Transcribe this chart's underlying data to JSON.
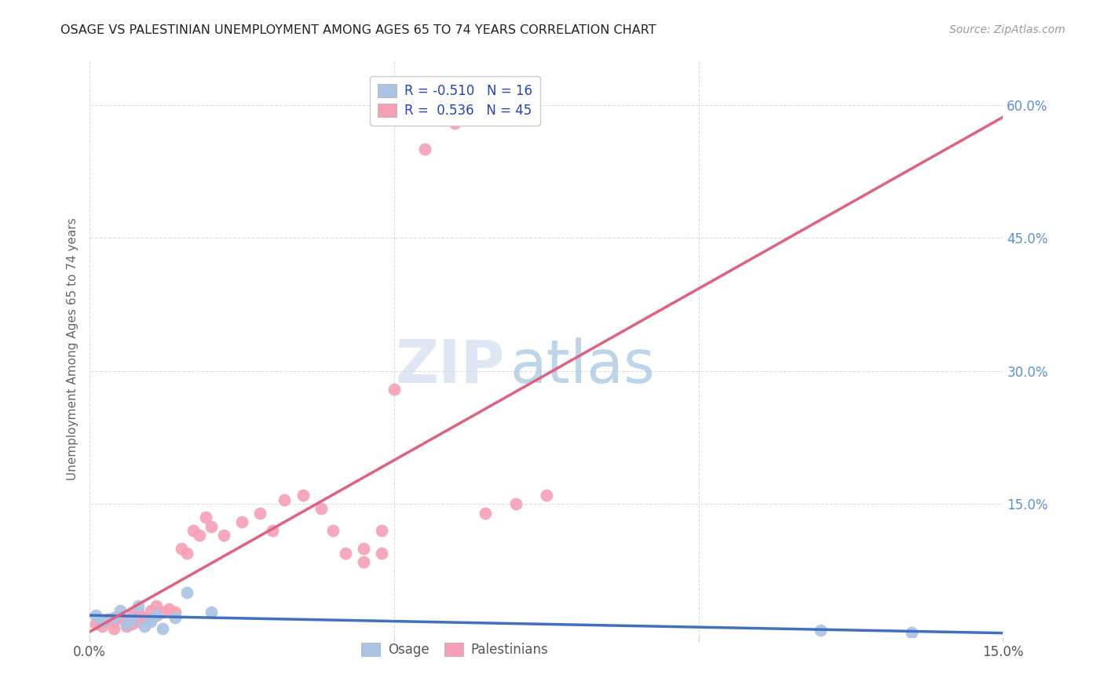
{
  "title": "OSAGE VS PALESTINIAN UNEMPLOYMENT AMONG AGES 65 TO 74 YEARS CORRELATION CHART",
  "source": "Source: ZipAtlas.com",
  "ylabel": "Unemployment Among Ages 65 to 74 years",
  "xlim": [
    0.0,
    0.15
  ],
  "ylim": [
    0.0,
    0.65
  ],
  "ytick_vals": [
    0.0,
    0.15,
    0.3,
    0.45,
    0.6
  ],
  "ytick_labels": [
    "",
    "15.0%",
    "30.0%",
    "45.0%",
    "60.0%"
  ],
  "xtick_vals": [
    0.0,
    0.05,
    0.1,
    0.15
  ],
  "xtick_labels": [
    "0.0%",
    "",
    "",
    "15.0%"
  ],
  "osage_color": "#aac4e4",
  "palestinian_color": "#f5a0b5",
  "osage_line_color": "#4070c0",
  "palestinian_line_color": "#e06080",
  "trendline_color": "#c8c8d0",
  "R_osage": -0.51,
  "N_osage": 16,
  "R_palestinian": 0.536,
  "N_palestinian": 45,
  "osage_x": [
    0.001,
    0.002,
    0.004,
    0.005,
    0.006,
    0.007,
    0.008,
    0.009,
    0.01,
    0.011,
    0.012,
    0.014,
    0.016,
    0.02,
    0.12,
    0.135
  ],
  "osage_y": [
    0.025,
    0.018,
    0.022,
    0.03,
    0.015,
    0.02,
    0.035,
    0.012,
    0.018,
    0.025,
    0.01,
    0.022,
    0.05,
    0.028,
    0.008,
    0.005
  ],
  "palestinian_x": [
    0.001,
    0.002,
    0.003,
    0.004,
    0.004,
    0.005,
    0.006,
    0.006,
    0.007,
    0.007,
    0.008,
    0.008,
    0.009,
    0.01,
    0.01,
    0.011,
    0.011,
    0.012,
    0.013,
    0.014,
    0.015,
    0.016,
    0.017,
    0.018,
    0.019,
    0.02,
    0.022,
    0.025,
    0.028,
    0.03,
    0.032,
    0.035,
    0.038,
    0.04,
    0.042,
    0.045,
    0.048,
    0.05,
    0.055,
    0.06,
    0.065,
    0.07,
    0.075,
    0.045,
    0.048
  ],
  "palestinian_y": [
    0.015,
    0.012,
    0.02,
    0.018,
    0.01,
    0.022,
    0.018,
    0.012,
    0.025,
    0.015,
    0.028,
    0.018,
    0.022,
    0.03,
    0.02,
    0.035,
    0.025,
    0.028,
    0.032,
    0.028,
    0.1,
    0.095,
    0.12,
    0.115,
    0.135,
    0.125,
    0.115,
    0.13,
    0.14,
    0.12,
    0.155,
    0.16,
    0.145,
    0.12,
    0.095,
    0.1,
    0.12,
    0.28,
    0.55,
    0.58,
    0.14,
    0.15,
    0.16,
    0.085,
    0.095
  ],
  "watermark_zip": "ZIP",
  "watermark_atlas": "atlas",
  "background_color": "#ffffff",
  "grid_color": "#d8dde8",
  "legend_face_color": "#ffffff",
  "legend_edge_color": "#cccccc"
}
